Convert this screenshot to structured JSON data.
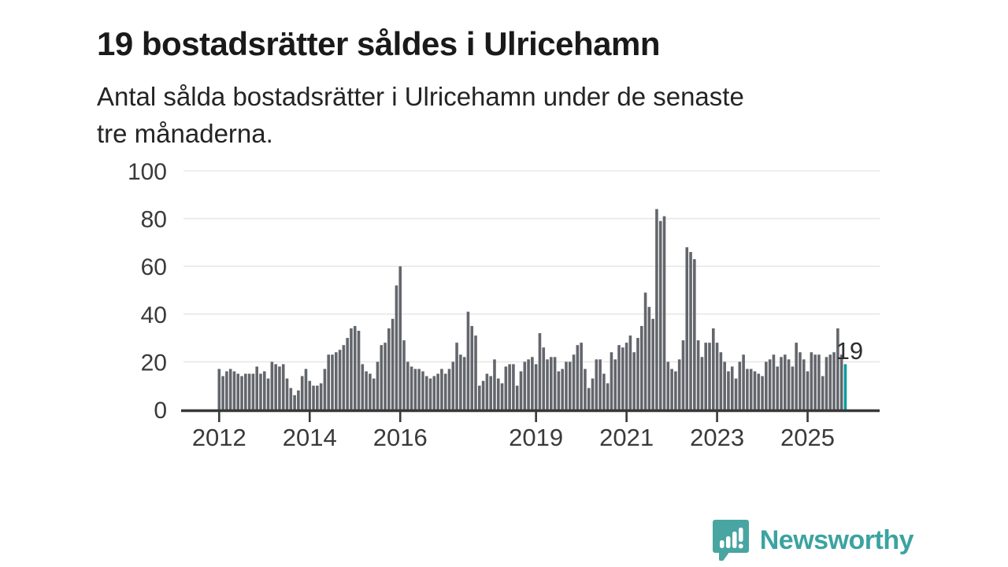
{
  "header": {
    "title": "19 bostadsrätter såldes i Ulricehamn",
    "subtitle_line1": "Antal sålda bostadsrätter i Ulricehamn under de senaste",
    "subtitle_line2": "tre månaderna."
  },
  "chart_data": {
    "type": "bar",
    "title": "19 bostadsrätter såldes i Ulricehamn",
    "subtitle": "Antal sålda bostadsrätter i Ulricehamn under de senaste tre månaderna.",
    "x_start": "2012-01",
    "x_interval": "monthly",
    "values": [
      17,
      14,
      16,
      17,
      16,
      15,
      14,
      15,
      15,
      15,
      18,
      15,
      16,
      13,
      20,
      19,
      18,
      19,
      13,
      9,
      6,
      8,
      14,
      17,
      12,
      10,
      10,
      11,
      17,
      23,
      23,
      24,
      25,
      27,
      30,
      34,
      35,
      33,
      19,
      16,
      15,
      13,
      20,
      27,
      28,
      34,
      38,
      52,
      60,
      29,
      20,
      18,
      17,
      17,
      16,
      14,
      13,
      14,
      15,
      17,
      15,
      17,
      20,
      28,
      23,
      22,
      41,
      35,
      31,
      10,
      12,
      15,
      14,
      21,
      13,
      11,
      18,
      19,
      19,
      10,
      16,
      20,
      21,
      22,
      19,
      32,
      26,
      21,
      22,
      22,
      16,
      17,
      20,
      20,
      23,
      27,
      28,
      17,
      9,
      13,
      21,
      21,
      15,
      11,
      24,
      21,
      27,
      26,
      28,
      31,
      24,
      30,
      35,
      49,
      43,
      38,
      84,
      79,
      81,
      20,
      17,
      16,
      21,
      29,
      68,
      66,
      63,
      29,
      22,
      28,
      28,
      34,
      28,
      24,
      20,
      16,
      18,
      13,
      20,
      23,
      17,
      17,
      16,
      15,
      14,
      20,
      21,
      23,
      18,
      22,
      23,
      21,
      18,
      28,
      24,
      21,
      16,
      24,
      23,
      23,
      14,
      22,
      23,
      24,
      34,
      23,
      19
    ],
    "ylim": [
      0,
      100
    ],
    "yticks": [
      0,
      20,
      40,
      60,
      80,
      100
    ],
    "ytick_labels": [
      "0",
      "20",
      "40",
      "60",
      "80",
      "100"
    ],
    "xtick_years": [
      2012,
      2014,
      2016,
      2019,
      2021,
      2023,
      2025
    ],
    "xtick_labels": [
      "2012",
      "2014",
      "2016",
      "2019",
      "2021",
      "2023",
      "2025"
    ],
    "grid": true,
    "legend": "none",
    "bar_color": "#63666c",
    "highlight_color": "#0a9ba0",
    "highlight_last": true,
    "highlight_value_label": "19"
  },
  "branding": {
    "logo_text": "Newsworthy",
    "logo_text_color": "#3ba3a1",
    "logo_mark_color": "#48a5a2",
    "logo_mark": "speech-bubble-bar-chart-icon"
  }
}
